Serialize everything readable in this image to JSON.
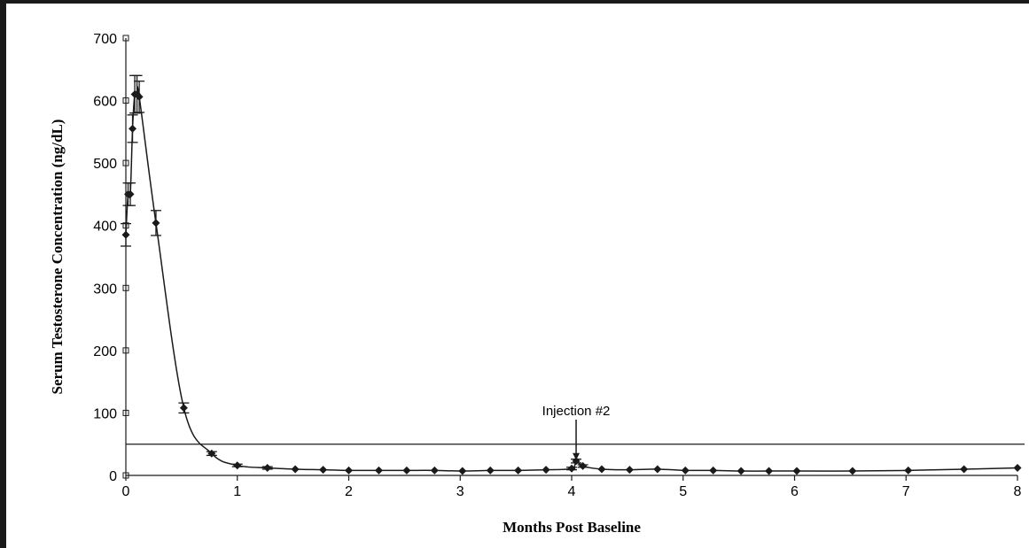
{
  "chart_data": {
    "type": "line",
    "title": "",
    "xlabel": "Months Post Baseline",
    "ylabel": "Serum Testosterone Concentration (ng/dL)",
    "xlim": [
      0,
      8
    ],
    "ylim": [
      0,
      700
    ],
    "x_ticks": [
      "0",
      "1",
      "2",
      "3",
      "4",
      "5",
      "6",
      "7",
      "8"
    ],
    "y_ticks": [
      "0",
      "100",
      "200",
      "300",
      "400",
      "500",
      "600",
      "700"
    ],
    "grid": false,
    "legend": "none",
    "series": [
      {
        "color": "#1a1a1a",
        "x": [
          0,
          0.02,
          0.04,
          0.06,
          0.08,
          0.1,
          0.12,
          0.27,
          0.52,
          0.77,
          1.0,
          1.27,
          1.52,
          1.77,
          2.0,
          2.27,
          2.52,
          2.77,
          3.02,
          3.27,
          3.52,
          3.77,
          4.0,
          4.04,
          4.1,
          4.27,
          4.52,
          4.77,
          5.02,
          5.27,
          5.52,
          5.77,
          6.02,
          6.52,
          7.02,
          7.52,
          8.0
        ],
        "y": [
          385,
          450,
          450,
          555,
          610,
          610,
          606,
          404,
          108,
          35,
          16,
          12,
          10,
          9,
          8,
          8,
          8,
          8,
          7,
          8,
          8,
          9,
          11,
          23,
          15,
          10,
          9,
          10,
          8,
          8,
          7,
          7,
          7,
          7,
          8,
          10,
          12
        ],
        "error": [
          18,
          18,
          18,
          22,
          30,
          30,
          25,
          20,
          8,
          3,
          2,
          2,
          1,
          1,
          1,
          1,
          1,
          1,
          1,
          1,
          1,
          1,
          2,
          3,
          2,
          1,
          1,
          1,
          1,
          1,
          1,
          1,
          1,
          1,
          1,
          1,
          1
        ]
      }
    ],
    "reference_line": {
      "y": 50
    },
    "annotations": [
      {
        "text": "Injection #2",
        "x": 4.04,
        "y": 23
      }
    ]
  }
}
